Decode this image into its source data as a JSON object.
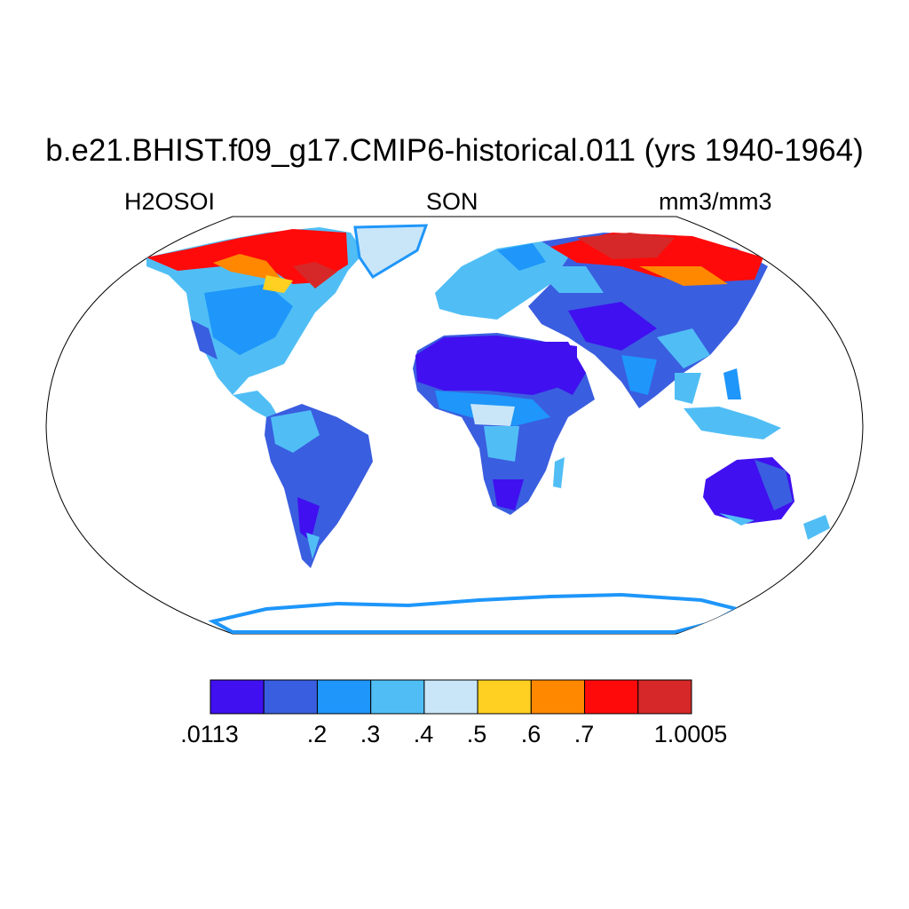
{
  "title": "b.e21.BHIST.f09_g17.CMIP6-historical.011 (yrs 1940-1964)",
  "subtitle_left": "H2OSOI",
  "subtitle_center": "SON",
  "subtitle_right": "mm3/mm3",
  "colorbar": {
    "colors": [
      "#4010f0",
      "#3a5ee0",
      "#1e96fa",
      "#50bef5",
      "#c8e6f8",
      "#ffd021",
      "#ff8800",
      "#ff0a0a",
      "#d62828"
    ],
    "labels": [
      ".0113",
      ".2",
      ".3",
      ".4",
      ".5",
      ".6",
      ".7",
      "1.0005"
    ]
  },
  "colors": {
    "border": "#000000",
    "background": "#ffffff"
  }
}
